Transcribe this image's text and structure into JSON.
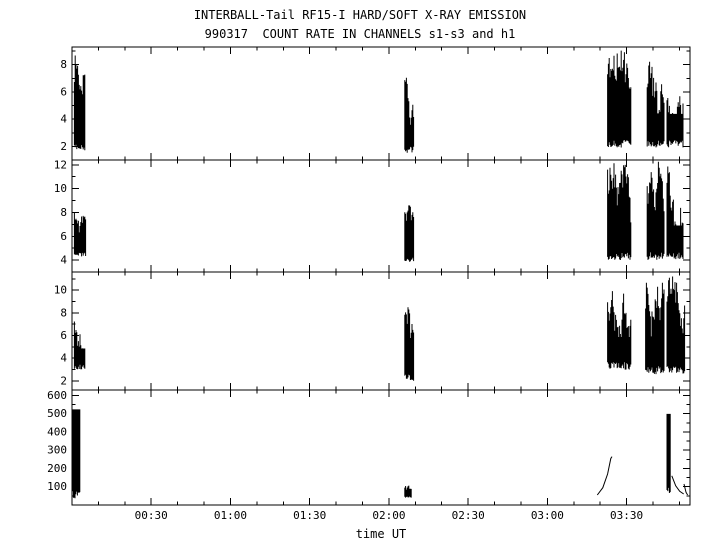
{
  "chart_data": {
    "type": "line",
    "title": "INTERBALL-Tail RF15-I HARD/SOFT X-RAY EMISSION",
    "subtitle": "990317  COUNT RATE IN CHANNELS s1-s3 and h1",
    "xlabel": "time UT",
    "xlim": [
      0,
      3.9
    ],
    "x_minor_step_hours": 0.1666667,
    "x_ticks": [
      {
        "t": 0.5,
        "label": "00:30"
      },
      {
        "t": 1.0,
        "label": "01:00"
      },
      {
        "t": 1.5,
        "label": "01:30"
      },
      {
        "t": 2.0,
        "label": "02:00"
      },
      {
        "t": 2.5,
        "label": "02:30"
      },
      {
        "t": 3.0,
        "label": "03:00"
      },
      {
        "t": 3.5,
        "label": "03:30"
      }
    ],
    "colors": {
      "foreground": "#000000",
      "background": "#ffffff"
    },
    "legend": "none",
    "grid": false,
    "panels": [
      {
        "name": "s1",
        "ylim": [
          1,
          9.3
        ],
        "yticks": [
          2,
          4,
          6,
          8
        ],
        "yminor": 1,
        "segments": [
          {
            "kind": "noise",
            "t0": 0.015,
            "t1": 0.085,
            "vmin": 1.7,
            "vmax": 8.7,
            "min_top": 0.35
          },
          {
            "kind": "noise",
            "t0": 2.1,
            "t1": 2.16,
            "vmin": 1.5,
            "vmax": 7.9,
            "min_top": 0.3
          },
          {
            "kind": "noise",
            "t0": 3.38,
            "t1": 3.53,
            "vmin": 1.9,
            "vmax": 9.1,
            "min_top": 0.35
          },
          {
            "kind": "noise",
            "t0": 3.63,
            "t1": 3.74,
            "vmin": 1.9,
            "vmax": 9.1,
            "min_top": 0.35
          },
          {
            "kind": "noise",
            "t0": 3.755,
            "t1": 3.86,
            "vmin": 1.9,
            "vmax": 9.0,
            "min_top": 0.35
          }
        ]
      },
      {
        "name": "s2",
        "ylim": [
          3,
          12.4
        ],
        "yticks": [
          4,
          6,
          8,
          10,
          12
        ],
        "yminor": 1,
        "segments": [
          {
            "kind": "noise",
            "t0": 0.015,
            "t1": 0.09,
            "vmin": 4.3,
            "vmax": 8.3,
            "min_top": 0.35
          },
          {
            "kind": "noise",
            "t0": 2.1,
            "t1": 2.16,
            "vmin": 3.8,
            "vmax": 9.3,
            "min_top": 0.3
          },
          {
            "kind": "noise",
            "t0": 3.38,
            "t1": 3.53,
            "vmin": 4.0,
            "vmax": 12.2,
            "min_top": 0.35
          },
          {
            "kind": "noise",
            "t0": 3.63,
            "t1": 3.74,
            "vmin": 4.0,
            "vmax": 12.3,
            "min_top": 0.35
          },
          {
            "kind": "noise",
            "t0": 3.755,
            "t1": 3.86,
            "vmin": 4.0,
            "vmax": 12.3,
            "min_top": 0.35
          }
        ]
      },
      {
        "name": "s3",
        "ylim": [
          1.2,
          11.6
        ],
        "yticks": [
          2,
          4,
          6,
          8,
          10
        ],
        "yminor": 1,
        "segments": [
          {
            "kind": "noise",
            "t0": 0.015,
            "t1": 0.085,
            "vmin": 3.0,
            "vmax": 8.3,
            "min_top": 0.35
          },
          {
            "kind": "noise",
            "t0": 2.1,
            "t1": 2.16,
            "vmin": 2.0,
            "vmax": 9.2,
            "min_top": 0.3
          },
          {
            "kind": "noise",
            "t0": 3.38,
            "t1": 3.53,
            "vmin": 3.0,
            "vmax": 11.2,
            "min_top": 0.35
          },
          {
            "kind": "noise",
            "t0": 3.62,
            "t1": 3.74,
            "vmin": 2.6,
            "vmax": 11.4,
            "min_top": 0.35
          },
          {
            "kind": "noise",
            "t0": 3.755,
            "t1": 3.87,
            "vmin": 2.6,
            "vmax": 11.3,
            "min_top": 0.35
          }
        ]
      },
      {
        "name": "h1",
        "ylim": [
          0,
          630
        ],
        "yticks": [
          100,
          200,
          300,
          400,
          500,
          600
        ],
        "yminor": 50,
        "segments": [
          {
            "kind": "noise",
            "t0": 0.004,
            "t1": 0.05,
            "vmin": 35,
            "vmax": 610,
            "min_top": 0.85
          },
          {
            "kind": "noise",
            "t0": 2.1,
            "t1": 2.145,
            "vmin": 40,
            "vmax": 125,
            "min_top": 0.3
          },
          {
            "kind": "curve",
            "points": [
              [
                3.315,
                55
              ],
              [
                3.35,
                95
              ],
              [
                3.38,
                170
              ],
              [
                3.4,
                255
              ],
              [
                3.408,
                265
              ]
            ]
          },
          {
            "kind": "noise",
            "t0": 3.755,
            "t1": 3.78,
            "vmin": 55,
            "vmax": 610,
            "min_top": 0.8
          },
          {
            "kind": "curve",
            "points": [
              [
                3.785,
                160
              ],
              [
                3.81,
                105
              ],
              [
                3.835,
                75
              ],
              [
                3.86,
                60
              ]
            ]
          },
          {
            "kind": "curve",
            "points": [
              [
                3.862,
                115
              ],
              [
                3.875,
                70
              ],
              [
                3.885,
                55
              ]
            ]
          }
        ]
      }
    ]
  }
}
